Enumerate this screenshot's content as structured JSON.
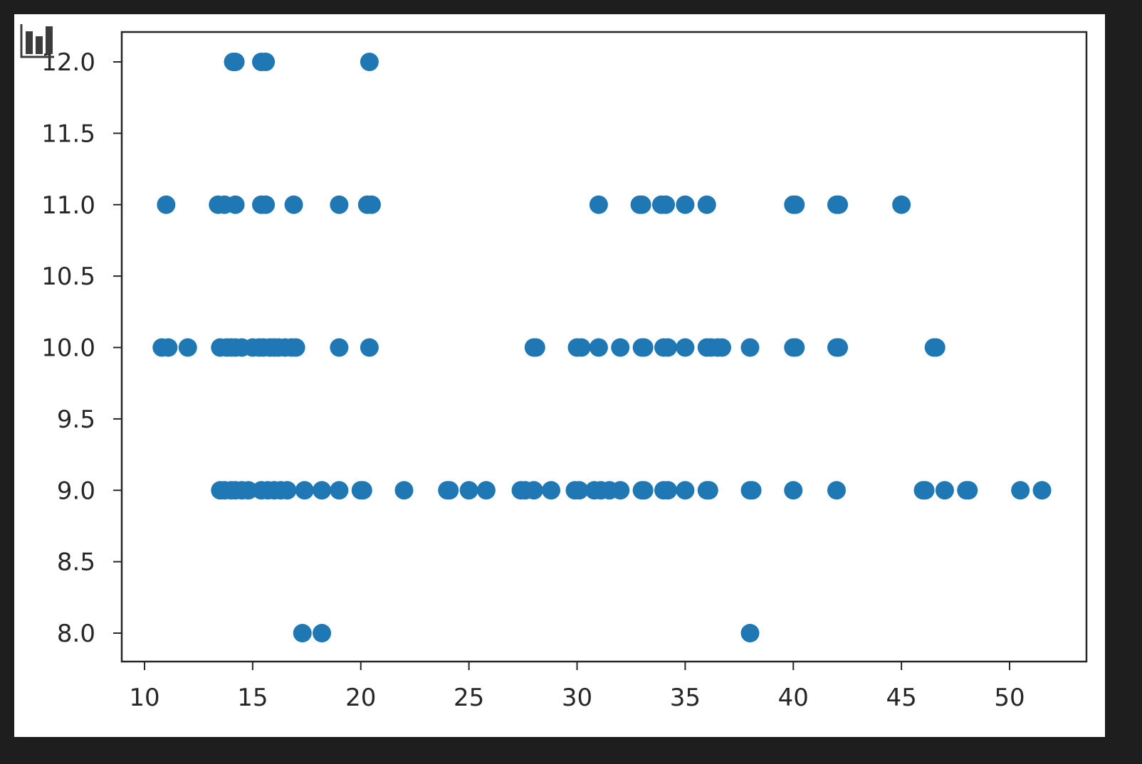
{
  "toolbar": {
    "icon": "bar-chart-icon"
  },
  "chart_data": {
    "type": "scatter",
    "title": "",
    "xlabel": "",
    "ylabel": "",
    "xlim": [
      9,
      53.5
    ],
    "ylim": [
      7.8,
      12.2
    ],
    "xticks": [
      10,
      15,
      20,
      25,
      30,
      35,
      40,
      45,
      50
    ],
    "yticks": [
      8.0,
      8.5,
      9.0,
      9.5,
      10.0,
      10.5,
      11.0,
      11.5,
      12.0
    ],
    "xtick_labels": [
      "10",
      "15",
      "20",
      "25",
      "30",
      "35",
      "40",
      "45",
      "50"
    ],
    "ytick_labels": [
      "8.0",
      "8.5",
      "9.0",
      "9.5",
      "10.0",
      "10.5",
      "11.0",
      "11.5",
      "12.0"
    ],
    "grid": false,
    "marker_color": "#1f77b4",
    "series": [
      {
        "points": [
          [
            14.1,
            12
          ],
          [
            14.2,
            12
          ],
          [
            15.4,
            12
          ],
          [
            15.6,
            12
          ],
          [
            20.4,
            12
          ],
          [
            11,
            11
          ],
          [
            13.4,
            11
          ],
          [
            13.7,
            11
          ],
          [
            14.2,
            11
          ],
          [
            15.4,
            11
          ],
          [
            15.6,
            11
          ],
          [
            16.9,
            11
          ],
          [
            19,
            11
          ],
          [
            20.3,
            11
          ],
          [
            20.5,
            11
          ],
          [
            31,
            11
          ],
          [
            32.9,
            11
          ],
          [
            33,
            11
          ],
          [
            33.9,
            11
          ],
          [
            34.1,
            11
          ],
          [
            35,
            11
          ],
          [
            36,
            11
          ],
          [
            40,
            11
          ],
          [
            40.1,
            11
          ],
          [
            42,
            11
          ],
          [
            42.1,
            11
          ],
          [
            45,
            11
          ],
          [
            10.8,
            10
          ],
          [
            11.1,
            10
          ],
          [
            12,
            10
          ],
          [
            13.5,
            10
          ],
          [
            13.8,
            10
          ],
          [
            14,
            10
          ],
          [
            14.2,
            10
          ],
          [
            14.5,
            10
          ],
          [
            15,
            10
          ],
          [
            15.3,
            10
          ],
          [
            15.5,
            10
          ],
          [
            15.8,
            10
          ],
          [
            16,
            10
          ],
          [
            16.2,
            10
          ],
          [
            16.5,
            10
          ],
          [
            16.8,
            10
          ],
          [
            17,
            10
          ],
          [
            19,
            10
          ],
          [
            20.4,
            10
          ],
          [
            28,
            10
          ],
          [
            28.1,
            10
          ],
          [
            30,
            10
          ],
          [
            30.2,
            10
          ],
          [
            31,
            10
          ],
          [
            32,
            10
          ],
          [
            33,
            10
          ],
          [
            33.1,
            10
          ],
          [
            34,
            10
          ],
          [
            34.2,
            10
          ],
          [
            35,
            10
          ],
          [
            36,
            10
          ],
          [
            36.2,
            10
          ],
          [
            36.5,
            10
          ],
          [
            36.7,
            10
          ],
          [
            38,
            10
          ],
          [
            40,
            10
          ],
          [
            40.1,
            10
          ],
          [
            42,
            10
          ],
          [
            42.1,
            10
          ],
          [
            46.5,
            10
          ],
          [
            46.6,
            10
          ],
          [
            13.5,
            9
          ],
          [
            13.7,
            9
          ],
          [
            14,
            9
          ],
          [
            14.2,
            9
          ],
          [
            14.5,
            9
          ],
          [
            14.8,
            9
          ],
          [
            15.4,
            9
          ],
          [
            15.7,
            9
          ],
          [
            16,
            9
          ],
          [
            16.3,
            9
          ],
          [
            16.6,
            9
          ],
          [
            17.4,
            9
          ],
          [
            18.2,
            9
          ],
          [
            19,
            9
          ],
          [
            20,
            9
          ],
          [
            20.1,
            9
          ],
          [
            22,
            9
          ],
          [
            24,
            9
          ],
          [
            24.1,
            9
          ],
          [
            25,
            9
          ],
          [
            25.8,
            9
          ],
          [
            27.4,
            9
          ],
          [
            27.6,
            9
          ],
          [
            28,
            9
          ],
          [
            28.8,
            9
          ],
          [
            29.9,
            9
          ],
          [
            30.1,
            9
          ],
          [
            30.8,
            9
          ],
          [
            31.1,
            9
          ],
          [
            31.5,
            9
          ],
          [
            32,
            9
          ],
          [
            33,
            9
          ],
          [
            33.1,
            9
          ],
          [
            34,
            9
          ],
          [
            34.2,
            9
          ],
          [
            35,
            9
          ],
          [
            36,
            9
          ],
          [
            36.1,
            9
          ],
          [
            38,
            9
          ],
          [
            38.1,
            9
          ],
          [
            40,
            9
          ],
          [
            42,
            9
          ],
          [
            46,
            9
          ],
          [
            46.1,
            9
          ],
          [
            47,
            9
          ],
          [
            48,
            9
          ],
          [
            48.1,
            9
          ],
          [
            50.5,
            9
          ],
          [
            51.5,
            9
          ],
          [
            17.3,
            8
          ],
          [
            18.2,
            8
          ],
          [
            38,
            8
          ]
        ]
      }
    ]
  }
}
